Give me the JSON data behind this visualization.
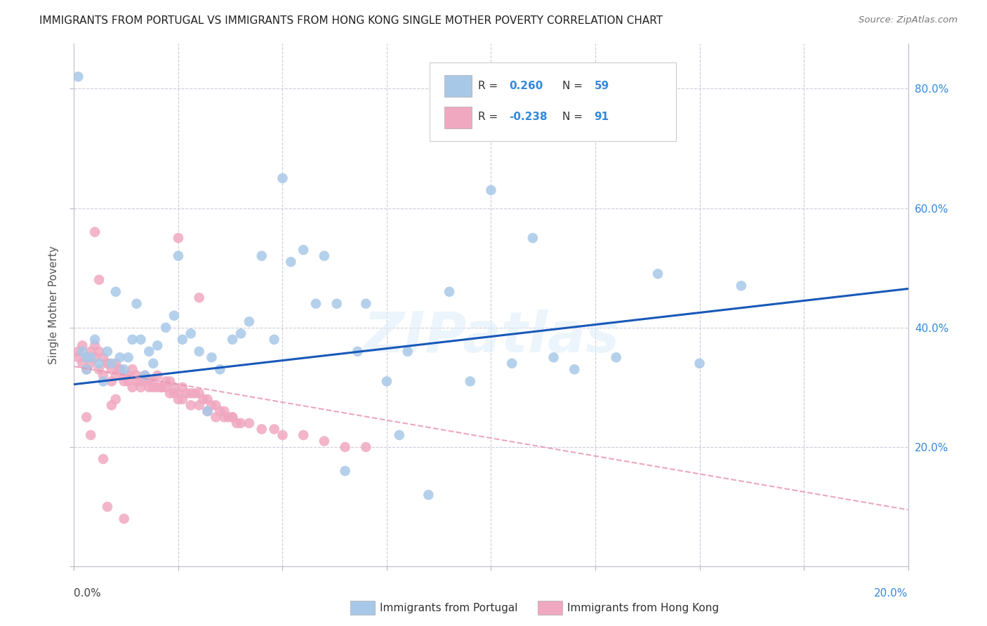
{
  "title": "IMMIGRANTS FROM PORTUGAL VS IMMIGRANTS FROM HONG KONG SINGLE MOTHER POVERTY CORRELATION CHART",
  "source": "Source: ZipAtlas.com",
  "ylabel": "Single Mother Poverty",
  "R1": 0.26,
  "N1": 59,
  "R2": -0.238,
  "N2": 91,
  "color_blue": "#a8c8e8",
  "color_pink": "#f0a8c0",
  "color_blue_line": "#1858b8",
  "color_pink_line": "#e890b0",
  "watermark": "ZIPatlas",
  "legend_label1": "Immigrants from Portugal",
  "legend_label2": "Immigrants from Hong Kong",
  "blue_scatter_x": [
    0.001,
    0.002,
    0.003,
    0.004,
    0.005,
    0.006,
    0.007,
    0.008,
    0.009,
    0.01,
    0.011,
    0.012,
    0.013,
    0.014,
    0.015,
    0.016,
    0.017,
    0.018,
    0.019,
    0.02,
    0.022,
    0.024,
    0.025,
    0.026,
    0.028,
    0.03,
    0.032,
    0.033,
    0.035,
    0.038,
    0.04,
    0.042,
    0.045,
    0.048,
    0.05,
    0.052,
    0.055,
    0.058,
    0.06,
    0.063,
    0.065,
    0.068,
    0.07,
    0.075,
    0.078,
    0.08,
    0.085,
    0.09,
    0.095,
    0.1,
    0.105,
    0.11,
    0.115,
    0.12,
    0.13,
    0.14,
    0.15,
    0.16,
    0.003
  ],
  "blue_scatter_y": [
    0.82,
    0.36,
    0.33,
    0.35,
    0.38,
    0.34,
    0.31,
    0.36,
    0.34,
    0.46,
    0.35,
    0.33,
    0.35,
    0.38,
    0.44,
    0.38,
    0.32,
    0.36,
    0.34,
    0.37,
    0.4,
    0.42,
    0.52,
    0.38,
    0.39,
    0.36,
    0.26,
    0.35,
    0.33,
    0.38,
    0.39,
    0.41,
    0.52,
    0.38,
    0.65,
    0.51,
    0.53,
    0.44,
    0.52,
    0.44,
    0.16,
    0.36,
    0.44,
    0.31,
    0.22,
    0.36,
    0.12,
    0.46,
    0.31,
    0.63,
    0.34,
    0.55,
    0.35,
    0.33,
    0.35,
    0.49,
    0.34,
    0.47,
    0.35
  ],
  "pink_scatter_x": [
    0.001,
    0.002,
    0.003,
    0.004,
    0.005,
    0.006,
    0.007,
    0.008,
    0.009,
    0.01,
    0.011,
    0.012,
    0.013,
    0.014,
    0.015,
    0.016,
    0.017,
    0.018,
    0.019,
    0.02,
    0.021,
    0.022,
    0.023,
    0.024,
    0.025,
    0.026,
    0.027,
    0.028,
    0.029,
    0.03,
    0.031,
    0.032,
    0.033,
    0.034,
    0.035,
    0.036,
    0.037,
    0.038,
    0.039,
    0.04,
    0.001,
    0.002,
    0.003,
    0.004,
    0.005,
    0.006,
    0.007,
    0.008,
    0.009,
    0.01,
    0.011,
    0.012,
    0.013,
    0.014,
    0.015,
    0.016,
    0.017,
    0.018,
    0.019,
    0.02,
    0.021,
    0.022,
    0.023,
    0.024,
    0.025,
    0.026,
    0.028,
    0.03,
    0.032,
    0.034,
    0.036,
    0.038,
    0.042,
    0.045,
    0.048,
    0.05,
    0.055,
    0.06,
    0.065,
    0.07,
    0.025,
    0.03,
    0.003,
    0.004,
    0.005,
    0.006,
    0.007,
    0.008,
    0.009,
    0.01,
    0.012
  ],
  "pink_scatter_y": [
    0.35,
    0.34,
    0.33,
    0.34,
    0.35,
    0.33,
    0.32,
    0.34,
    0.31,
    0.32,
    0.33,
    0.31,
    0.32,
    0.3,
    0.31,
    0.3,
    0.32,
    0.31,
    0.3,
    0.32,
    0.3,
    0.31,
    0.31,
    0.3,
    0.29,
    0.3,
    0.29,
    0.29,
    0.29,
    0.29,
    0.28,
    0.28,
    0.27,
    0.27,
    0.26,
    0.25,
    0.25,
    0.25,
    0.24,
    0.24,
    0.36,
    0.37,
    0.35,
    0.36,
    0.37,
    0.36,
    0.35,
    0.34,
    0.33,
    0.34,
    0.33,
    0.32,
    0.31,
    0.33,
    0.32,
    0.31,
    0.31,
    0.3,
    0.31,
    0.3,
    0.3,
    0.3,
    0.29,
    0.29,
    0.28,
    0.28,
    0.27,
    0.27,
    0.26,
    0.25,
    0.26,
    0.25,
    0.24,
    0.23,
    0.23,
    0.22,
    0.22,
    0.21,
    0.2,
    0.2,
    0.55,
    0.45,
    0.25,
    0.22,
    0.56,
    0.48,
    0.18,
    0.1,
    0.27,
    0.28,
    0.08
  ],
  "xlim": [
    0.0,
    0.2
  ],
  "ylim": [
    0.0,
    0.875
  ],
  "blue_line_x": [
    0.0,
    0.2
  ],
  "blue_line_y": [
    0.305,
    0.465
  ],
  "pink_line_x": [
    0.0,
    0.2
  ],
  "pink_line_y": [
    0.335,
    0.095
  ]
}
